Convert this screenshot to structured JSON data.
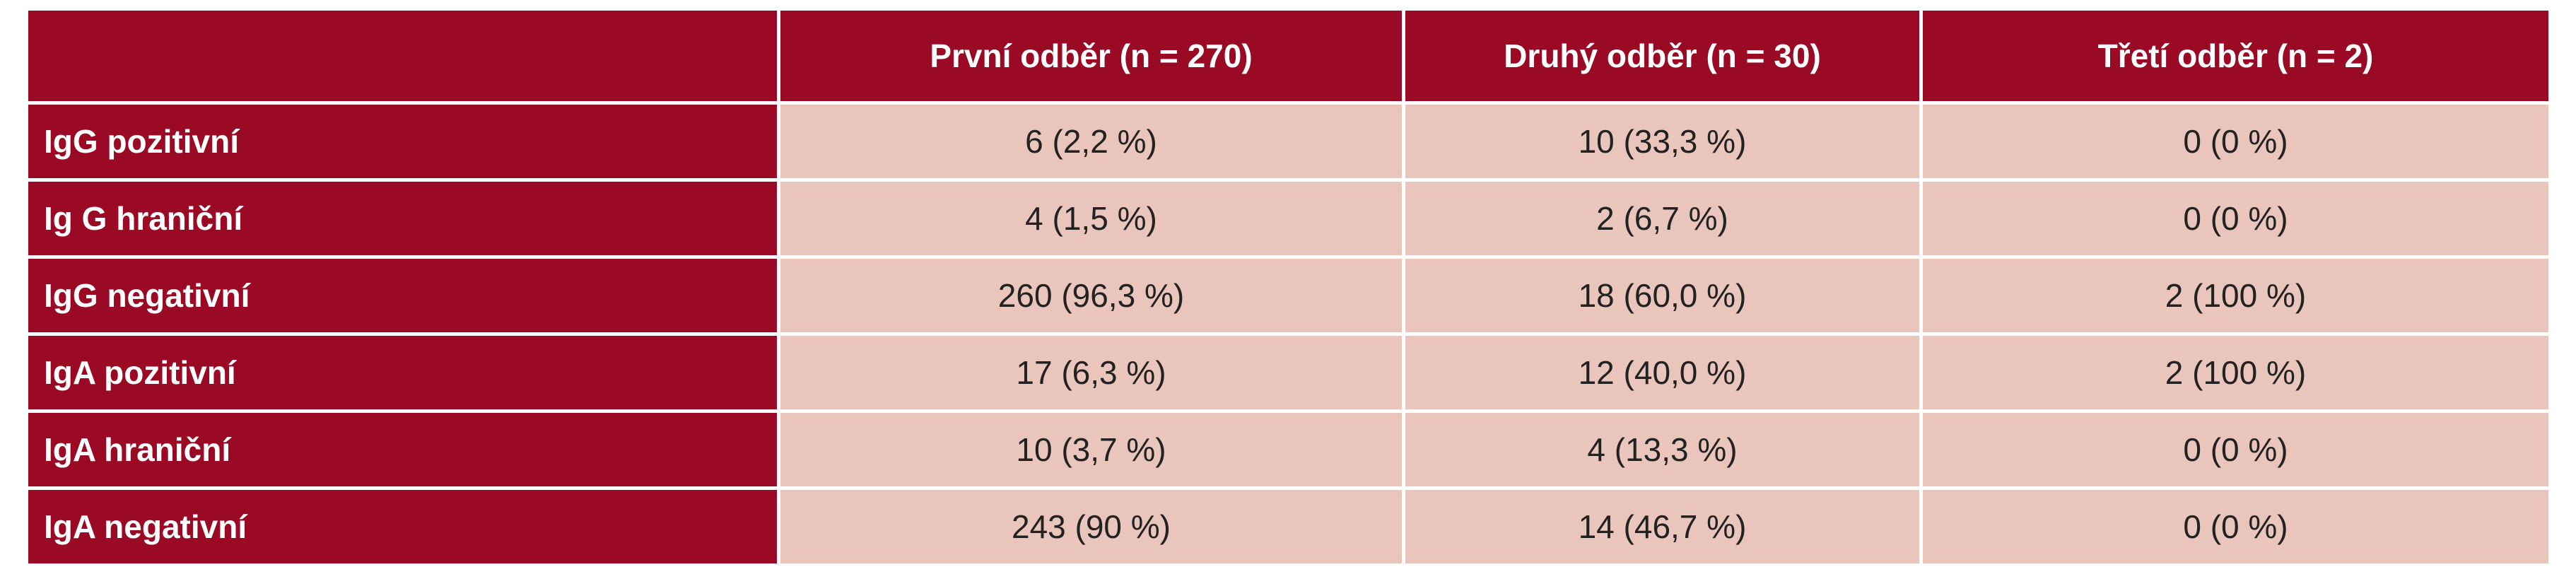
{
  "table": {
    "header": [
      "První odběr (n = 270)",
      "Druhý odběr (n = 30)",
      "Třetí odběr (n = 2)"
    ],
    "rows": [
      [
        "IgG pozitivní",
        "6 (2,2 %)",
        "10 (33,3 %)",
        "0 (0 %)"
      ],
      [
        "Ig G hraniční",
        "4 (1,5 %)",
        "2 (6,7 %)",
        "0 (0 %)"
      ],
      [
        "IgG negativní",
        "260 (96,3 %)",
        "18 (60,0 %)",
        "2 (100 %)"
      ],
      [
        "IgA pozitivní",
        "17 (6,3 %)",
        "12 (40,0 %)",
        "2 (100 %)"
      ],
      [
        "IgA hraniční",
        "10 (3,7 %)",
        "4 (13,3 %)",
        "0 (0 %)"
      ],
      [
        "IgA negativní",
        "243 (90 %)",
        "14 (46,7 %)",
        "0 (0 %)"
      ]
    ]
  }
}
